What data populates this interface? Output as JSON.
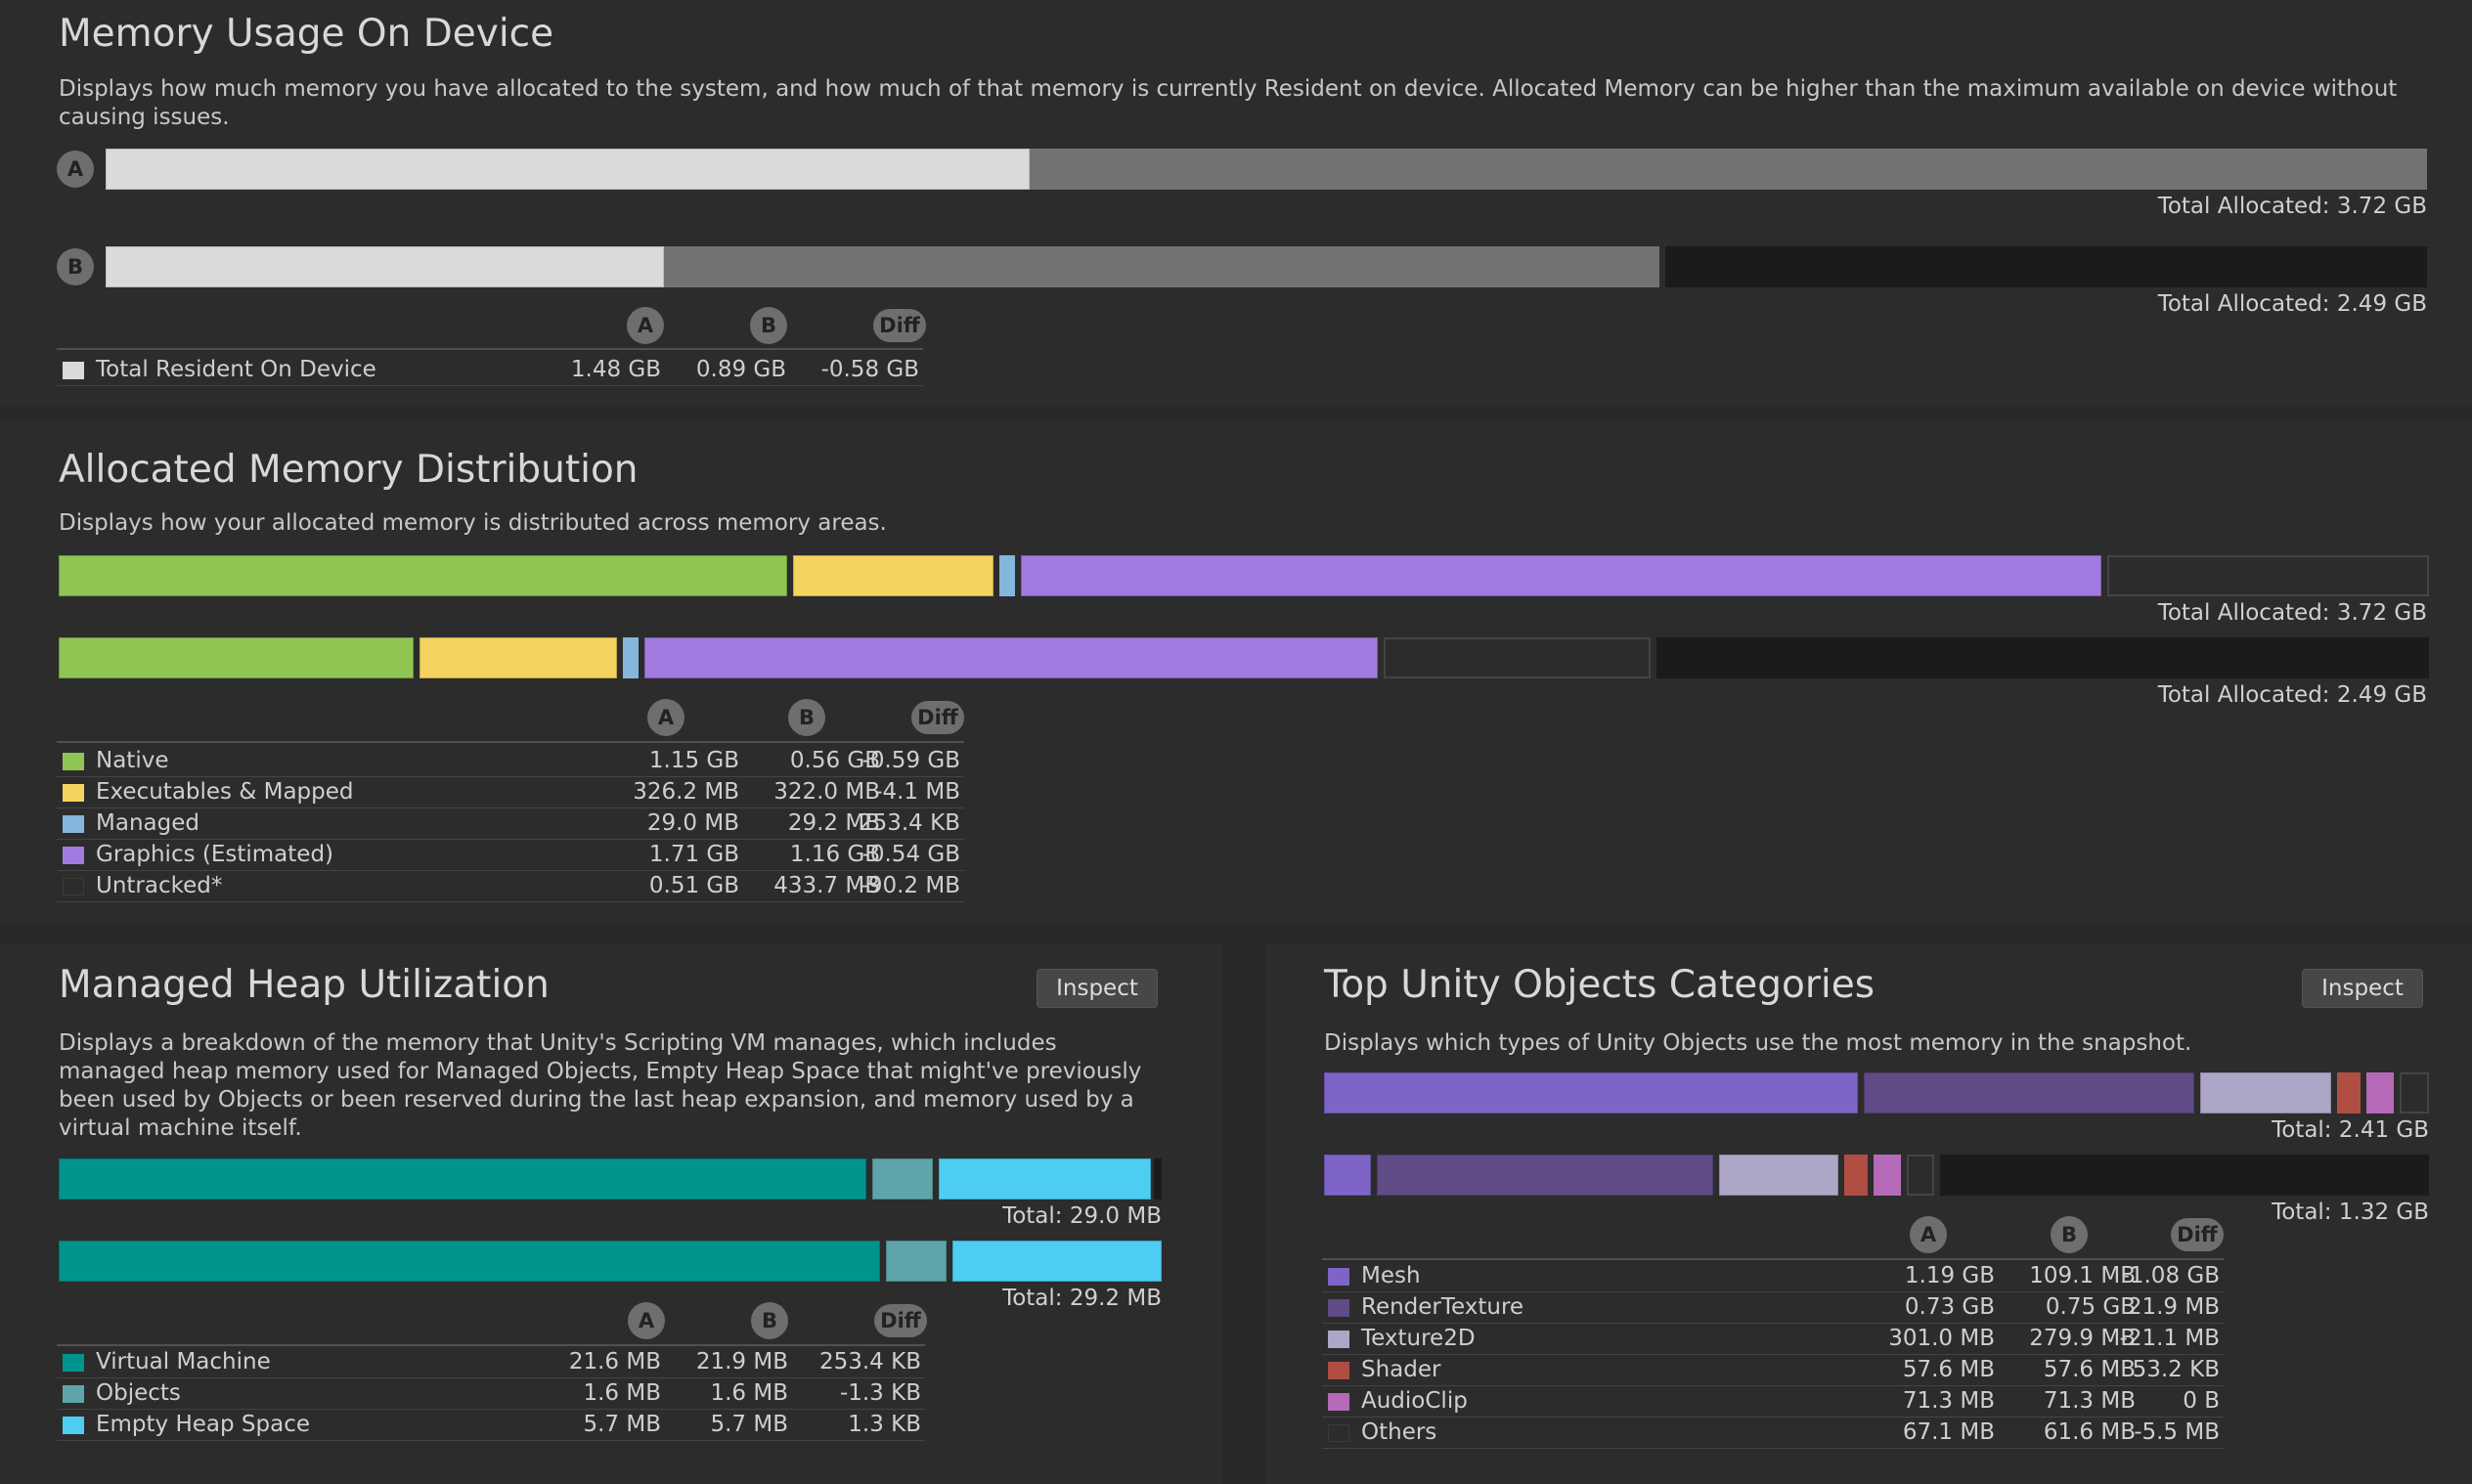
{
  "colors": {
    "resident": "#dadada",
    "allocated": "#727272",
    "empty": "#1b1b1b",
    "native": "#8fc653",
    "executables": "#f4d35e",
    "managed": "#85b6db",
    "graphics": "#a17be0",
    "untracked": "#2c2c2c",
    "virtual_machine": "#00948f",
    "objects": "#5ea5aa",
    "empty_heap": "#4dcdf1",
    "mesh": "#7f64c8",
    "render_texture": "#604b86",
    "texture2d": "#aea6c6",
    "shader": "#b04e43",
    "audioclip": "#b56ab7",
    "others": "#2c2c2c"
  },
  "memory_usage": {
    "title": "Memory Usage On Device",
    "description": "Displays how much memory you have allocated to the system, and how much of that memory is currently Resident on device. Allocated Memory can be higher than the maximum available on device without causing issues.",
    "snapshot_a": "A",
    "snapshot_b": "B",
    "total_a": "Total Allocated: 3.72 GB",
    "total_b": "Total Allocated: 2.49 GB",
    "bar_a": {
      "resident_fraction": 0.398,
      "allocated_fraction": 1.0
    },
    "bar_b": {
      "resident_fraction": 0.24,
      "allocated_fraction": 0.668
    },
    "header": {
      "a": "A",
      "b": "B",
      "diff": "Diff"
    },
    "rows": [
      {
        "label": "Total Resident On Device",
        "a": "1.48 GB",
        "b": "0.89 GB",
        "diff": "-0.58 GB"
      }
    ]
  },
  "allocated_distribution": {
    "title": "Allocated Memory Distribution",
    "description": "Displays how your allocated memory is distributed across memory areas.",
    "total_a": "Total Allocated: 3.72 GB",
    "total_b": "Total Allocated: 2.49 GB",
    "header": {
      "a": "A",
      "b": "B",
      "diff": "Diff"
    },
    "rows": [
      {
        "label": "Native",
        "a": "1.15 GB",
        "b": "0.56 GB",
        "diff": "-0.59 GB"
      },
      {
        "label": "Executables & Mapped",
        "a": "326.2 MB",
        "b": "322.0 MB",
        "diff": "-4.1 MB"
      },
      {
        "label": "Managed",
        "a": "29.0 MB",
        "b": "29.2 MB",
        "diff": "253.4 KB"
      },
      {
        "label": "Graphics (Estimated)",
        "a": "1.71 GB",
        "b": "1.16 GB",
        "diff": "-0.54 GB"
      },
      {
        "label": "Untracked*",
        "a": "0.51 GB",
        "b": "433.7 MB",
        "diff": "-90.2 MB"
      }
    ]
  },
  "managed_heap": {
    "title": "Managed Heap Utilization",
    "inspect_label": "Inspect",
    "description": "Displays a breakdown of the memory that Unity's Scripting VM manages, which includes managed heap memory used for Managed Objects, Empty Heap Space that might've previously been used by Objects or been reserved during the last heap expansion, and memory used by a virtual machine itself.",
    "total_a": "Total: 29.0 MB",
    "total_b": "Total: 29.2 MB",
    "header": {
      "a": "A",
      "b": "B",
      "diff": "Diff"
    },
    "rows": [
      {
        "label": "Virtual Machine",
        "a": "21.6 MB",
        "b": "21.9 MB",
        "diff": "253.4 KB"
      },
      {
        "label": "Objects",
        "a": "1.6 MB",
        "b": "1.6 MB",
        "diff": "-1.3 KB"
      },
      {
        "label": "Empty Heap Space",
        "a": "5.7 MB",
        "b": "5.7 MB",
        "diff": "1.3 KB"
      }
    ]
  },
  "top_objects": {
    "title": "Top Unity Objects Categories",
    "inspect_label": "Inspect",
    "description": "Displays which types of Unity Objects use the most memory in the snapshot.",
    "total_a": "Total: 2.41 GB",
    "total_b": "Total: 1.32 GB",
    "header": {
      "a": "A",
      "b": "B",
      "diff": "Diff"
    },
    "rows": [
      {
        "label": "Mesh",
        "a": "1.19 GB",
        "b": "109.1 MB",
        "diff": "-1.08 GB"
      },
      {
        "label": "RenderTexture",
        "a": "0.73 GB",
        "b": "0.75 GB",
        "diff": "21.9 MB"
      },
      {
        "label": "Texture2D",
        "a": "301.0 MB",
        "b": "279.9 MB",
        "diff": "-21.1 MB"
      },
      {
        "label": "Shader",
        "a": "57.6 MB",
        "b": "57.6 MB",
        "diff": "53.2 KB"
      },
      {
        "label": "AudioClip",
        "a": "71.3 MB",
        "b": "71.3 MB",
        "diff": "0 B"
      },
      {
        "label": "Others",
        "a": "67.1 MB",
        "b": "61.6 MB",
        "diff": "-5.5 MB"
      }
    ]
  }
}
